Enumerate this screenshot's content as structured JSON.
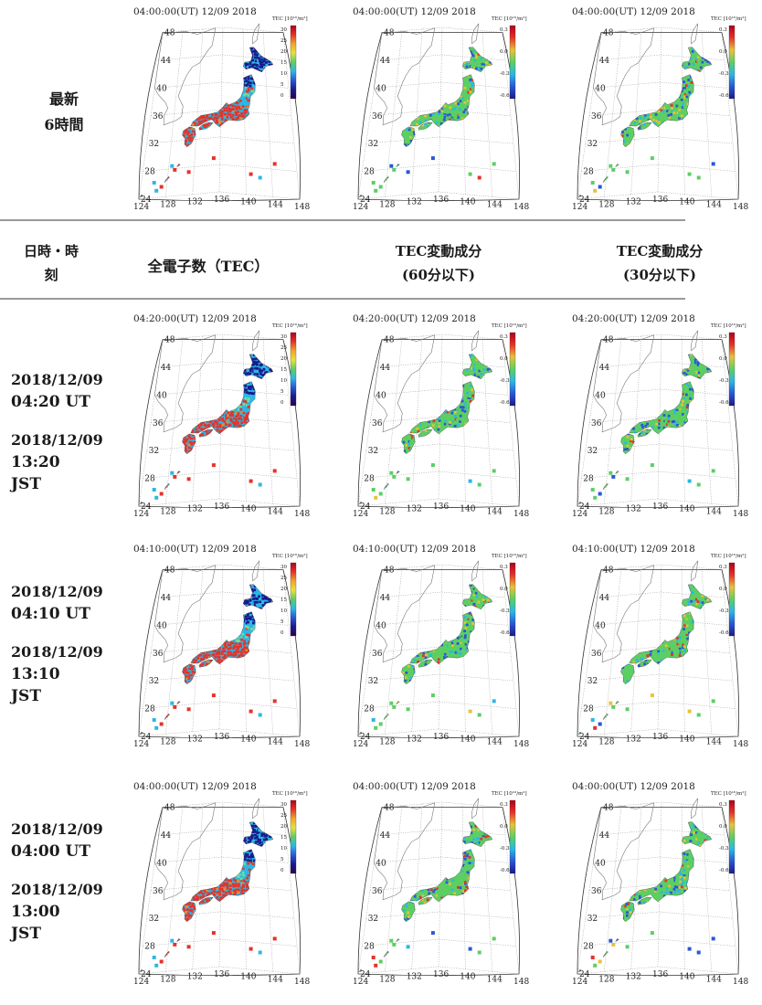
{
  "latest": {
    "line1": "最新",
    "line2": "6時間",
    "maps": [
      {
        "title": "04:00:00(UT)  12/09 2018",
        "type": "tec"
      },
      {
        "title": "04:00:00(UT)  12/09 2018",
        "type": "var"
      },
      {
        "title": "04:00:00(UT)  12/09 2018",
        "type": "var30"
      }
    ]
  },
  "header": {
    "col0_line1": "日時・時",
    "col0_line2": "刻",
    "col1": "全電子数（TEC）",
    "col2_line1": "TEC変動成分",
    "col2_line2": "(60分以下)",
    "col3_line1": "TEC変動成分",
    "col3_line2": "(30分以下)"
  },
  "rows": [
    {
      "date_ut": "2018/12/09",
      "time_ut": "04:20 UT",
      "date_jst": "2018/12/09",
      "time_jst": "13:20",
      "jst": "JST",
      "maps": [
        {
          "title": "04:20:00(UT)  12/09 2018",
          "type": "tec"
        },
        {
          "title": "04:20:00(UT)  12/09 2018",
          "type": "var"
        },
        {
          "title": "04:20:00(UT)  12/09 2018",
          "type": "var30"
        }
      ]
    },
    {
      "date_ut": "2018/12/09",
      "time_ut": "04:10 UT",
      "date_jst": "2018/12/09",
      "time_jst": "13:10",
      "jst": "JST",
      "maps": [
        {
          "title": "04:10:00(UT)  12/09 2018",
          "type": "tec"
        },
        {
          "title": "04:10:00(UT)  12/09 2018",
          "type": "var"
        },
        {
          "title": "04:10:00(UT)  12/09 2018",
          "type": "var30"
        }
      ]
    },
    {
      "date_ut": "2018/12/09",
      "time_ut": "04:00 UT",
      "date_jst": "2018/12/09",
      "time_jst": "13:00",
      "jst": "JST",
      "maps": [
        {
          "title": "04:00:00(UT)  12/09 2018",
          "type": "tec"
        },
        {
          "title": "04:00:00(UT)  12/09 2018",
          "type": "var"
        },
        {
          "title": "04:00:00(UT)  12/09 2018",
          "type": "var30"
        }
      ]
    }
  ],
  "map_axes": {
    "lat_labels": [
      "48",
      "44",
      "40",
      "36",
      "32",
      "28",
      "24"
    ],
    "lon_labels": [
      "124",
      "128",
      "132",
      "136",
      "140",
      "144",
      "148"
    ],
    "tec_colorbar_title": "TEC [10¹⁶/m²]",
    "tec_colorbar_ticks": [
      "30",
      "25",
      "20",
      "15",
      "10",
      "5",
      "0"
    ],
    "var_colorbar_title": "TEC [10¹⁶/m²]",
    "var_colorbar_ticks": [
      "0.3",
      "0.0",
      "-0.3",
      "-0.6"
    ]
  },
  "colors": {
    "tec_low": "#1a1a8c",
    "tec_mid": "#2bb8e6",
    "tec_high": "#e5332a",
    "var_base": "#5ccf63",
    "var_neg": "#2a57d6",
    "var_pos": "#e8c23a",
    "grid": "#6e6e6e",
    "rule": "#9a9a9a"
  }
}
